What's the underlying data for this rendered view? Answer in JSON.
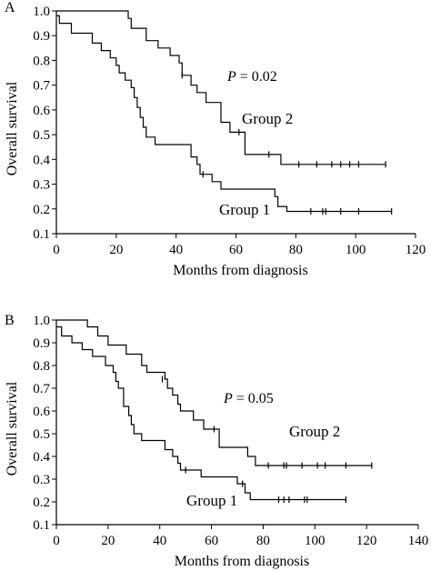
{
  "chart_data": [
    {
      "type": "line",
      "subtype": "kaplan-meier step",
      "panel_label": "A",
      "xlabel": "Months from diagnosis",
      "ylabel": "Overall survival",
      "xlim": [
        0,
        120
      ],
      "ylim": [
        0.1,
        1.0
      ],
      "xticks": [
        "0",
        "20",
        "40",
        "60",
        "80",
        "100",
        "120"
      ],
      "yticks": [
        "0.1",
        "0.2",
        "0.3",
        "0.4",
        "0.5",
        "0.6",
        "0.7",
        "0.8",
        "0.9",
        "1.0"
      ],
      "grid": false,
      "annotation_p_label": "P",
      "annotation_p_value": "= 0.02",
      "series": [
        {
          "name": "Group 2",
          "steps": [
            [
              0,
              1.0
            ],
            [
              24,
              1.0
            ],
            [
              24,
              0.97
            ],
            [
              25,
              0.97
            ],
            [
              25,
              0.93
            ],
            [
              30,
              0.93
            ],
            [
              30,
              0.88
            ],
            [
              34,
              0.88
            ],
            [
              34,
              0.85
            ],
            [
              38,
              0.85
            ],
            [
              38,
              0.82
            ],
            [
              41,
              0.82
            ],
            [
              41,
              0.79
            ],
            [
              42,
              0.79
            ],
            [
              42,
              0.74
            ],
            [
              45,
              0.74
            ],
            [
              45,
              0.7
            ],
            [
              47,
              0.7
            ],
            [
              47,
              0.67
            ],
            [
              50,
              0.67
            ],
            [
              50,
              0.63
            ],
            [
              55,
              0.63
            ],
            [
              55,
              0.55
            ],
            [
              58,
              0.55
            ],
            [
              58,
              0.51
            ],
            [
              63,
              0.51
            ],
            [
              63,
              0.42
            ],
            [
              75,
              0.42
            ],
            [
              75,
              0.38
            ],
            [
              110,
              0.38
            ]
          ],
          "censored": [
            [
              42,
              0.74
            ],
            [
              61,
              0.51
            ],
            [
              71,
              0.42
            ],
            [
              81,
              0.38
            ],
            [
              87,
              0.38
            ],
            [
              92,
              0.38
            ],
            [
              95,
              0.38
            ],
            [
              98,
              0.38
            ],
            [
              101,
              0.38
            ],
            [
              110,
              0.38
            ]
          ]
        },
        {
          "name": "Group 1",
          "steps": [
            [
              0,
              0.98
            ],
            [
              1,
              0.98
            ],
            [
              1,
              0.95
            ],
            [
              5,
              0.95
            ],
            [
              5,
              0.91
            ],
            [
              12,
              0.91
            ],
            [
              12,
              0.87
            ],
            [
              15,
              0.87
            ],
            [
              15,
              0.84
            ],
            [
              18,
              0.84
            ],
            [
              18,
              0.81
            ],
            [
              20,
              0.81
            ],
            [
              20,
              0.78
            ],
            [
              21,
              0.78
            ],
            [
              21,
              0.75
            ],
            [
              23,
              0.75
            ],
            [
              23,
              0.72
            ],
            [
              25,
              0.72
            ],
            [
              25,
              0.69
            ],
            [
              26,
              0.69
            ],
            [
              26,
              0.65
            ],
            [
              27,
              0.65
            ],
            [
              27,
              0.61
            ],
            [
              28,
              0.61
            ],
            [
              28,
              0.57
            ],
            [
              29,
              0.57
            ],
            [
              29,
              0.53
            ],
            [
              30,
              0.53
            ],
            [
              30,
              0.49
            ],
            [
              33,
              0.49
            ],
            [
              33,
              0.46
            ],
            [
              45,
              0.46
            ],
            [
              45,
              0.41
            ],
            [
              47,
              0.41
            ],
            [
              47,
              0.38
            ],
            [
              48,
              0.38
            ],
            [
              48,
              0.34
            ],
            [
              52,
              0.34
            ],
            [
              52,
              0.31
            ],
            [
              55,
              0.31
            ],
            [
              55,
              0.28
            ],
            [
              73,
              0.28
            ],
            [
              73,
              0.25
            ],
            [
              74,
              0.25
            ],
            [
              74,
              0.21
            ],
            [
              77,
              0.21
            ],
            [
              77,
              0.19
            ],
            [
              112,
              0.19
            ]
          ],
          "censored": [
            [
              49,
              0.34
            ],
            [
              85,
              0.19
            ],
            [
              89,
              0.19
            ],
            [
              90,
              0.19
            ],
            [
              95,
              0.19
            ],
            [
              101,
              0.19
            ],
            [
              112,
              0.19
            ]
          ]
        }
      ]
    },
    {
      "type": "line",
      "subtype": "kaplan-meier step",
      "panel_label": "B",
      "xlabel": "Months from diagnosis",
      "ylabel": "Overall survival",
      "xlim": [
        0,
        140
      ],
      "ylim": [
        0.1,
        1.0
      ],
      "xticks": [
        "0",
        "20",
        "40",
        "60",
        "80",
        "100",
        "120",
        "140"
      ],
      "yticks": [
        "0.1",
        "0.2",
        "0.3",
        "0.4",
        "0.5",
        "0.6",
        "0.7",
        "0.8",
        "0.9",
        "1.0"
      ],
      "grid": false,
      "annotation_p_label": "P",
      "annotation_p_value": "= 0.05",
      "series": [
        {
          "name": "Group 2",
          "steps": [
            [
              0,
              1.0
            ],
            [
              12,
              1.0
            ],
            [
              12,
              0.97
            ],
            [
              16,
              0.97
            ],
            [
              16,
              0.93
            ],
            [
              20,
              0.93
            ],
            [
              20,
              0.89
            ],
            [
              27,
              0.89
            ],
            [
              27,
              0.85
            ],
            [
              33,
              0.85
            ],
            [
              33,
              0.8
            ],
            [
              35,
              0.8
            ],
            [
              35,
              0.77
            ],
            [
              42,
              0.77
            ],
            [
              42,
              0.74
            ],
            [
              43,
              0.74
            ],
            [
              43,
              0.7
            ],
            [
              45,
              0.7
            ],
            [
              45,
              0.67
            ],
            [
              47,
              0.67
            ],
            [
              47,
              0.63
            ],
            [
              48,
              0.63
            ],
            [
              48,
              0.6
            ],
            [
              53,
              0.6
            ],
            [
              53,
              0.56
            ],
            [
              57,
              0.56
            ],
            [
              57,
              0.52
            ],
            [
              63,
              0.52
            ],
            [
              63,
              0.44
            ],
            [
              74,
              0.44
            ],
            [
              74,
              0.4
            ],
            [
              77,
              0.4
            ],
            [
              77,
              0.36
            ],
            [
              122,
              0.36
            ]
          ],
          "censored": [
            [
              41,
              0.74
            ],
            [
              61,
              0.52
            ],
            [
              82,
              0.36
            ],
            [
              88,
              0.36
            ],
            [
              89,
              0.36
            ],
            [
              95,
              0.36
            ],
            [
              101,
              0.36
            ],
            [
              104,
              0.36
            ],
            [
              112,
              0.36
            ],
            [
              122,
              0.36
            ]
          ]
        },
        {
          "name": "Group 1",
          "steps": [
            [
              0,
              0.97
            ],
            [
              2,
              0.97
            ],
            [
              2,
              0.93
            ],
            [
              6,
              0.93
            ],
            [
              6,
              0.9
            ],
            [
              10,
              0.9
            ],
            [
              10,
              0.87
            ],
            [
              14,
              0.87
            ],
            [
              14,
              0.84
            ],
            [
              19,
              0.84
            ],
            [
              19,
              0.8
            ],
            [
              22,
              0.8
            ],
            [
              22,
              0.77
            ],
            [
              23,
              0.77
            ],
            [
              23,
              0.73
            ],
            [
              24,
              0.73
            ],
            [
              24,
              0.7
            ],
            [
              26,
              0.7
            ],
            [
              26,
              0.62
            ],
            [
              28,
              0.62
            ],
            [
              28,
              0.58
            ],
            [
              29,
              0.58
            ],
            [
              29,
              0.54
            ],
            [
              30,
              0.54
            ],
            [
              30,
              0.5
            ],
            [
              33,
              0.5
            ],
            [
              33,
              0.47
            ],
            [
              42,
              0.47
            ],
            [
              42,
              0.43
            ],
            [
              45,
              0.43
            ],
            [
              45,
              0.4
            ],
            [
              47,
              0.4
            ],
            [
              47,
              0.37
            ],
            [
              48,
              0.37
            ],
            [
              48,
              0.34
            ],
            [
              56,
              0.34
            ],
            [
              56,
              0.31
            ],
            [
              70,
              0.31
            ],
            [
              70,
              0.28
            ],
            [
              73,
              0.28
            ],
            [
              73,
              0.24
            ],
            [
              75,
              0.24
            ],
            [
              75,
              0.21
            ],
            [
              112,
              0.21
            ]
          ],
          "censored": [
            [
              50,
              0.34
            ],
            [
              72,
              0.28
            ],
            [
              86,
              0.21
            ],
            [
              88,
              0.21
            ],
            [
              90,
              0.21
            ],
            [
              96,
              0.21
            ],
            [
              97,
              0.21
            ],
            [
              112,
              0.21
            ]
          ]
        }
      ]
    }
  ]
}
